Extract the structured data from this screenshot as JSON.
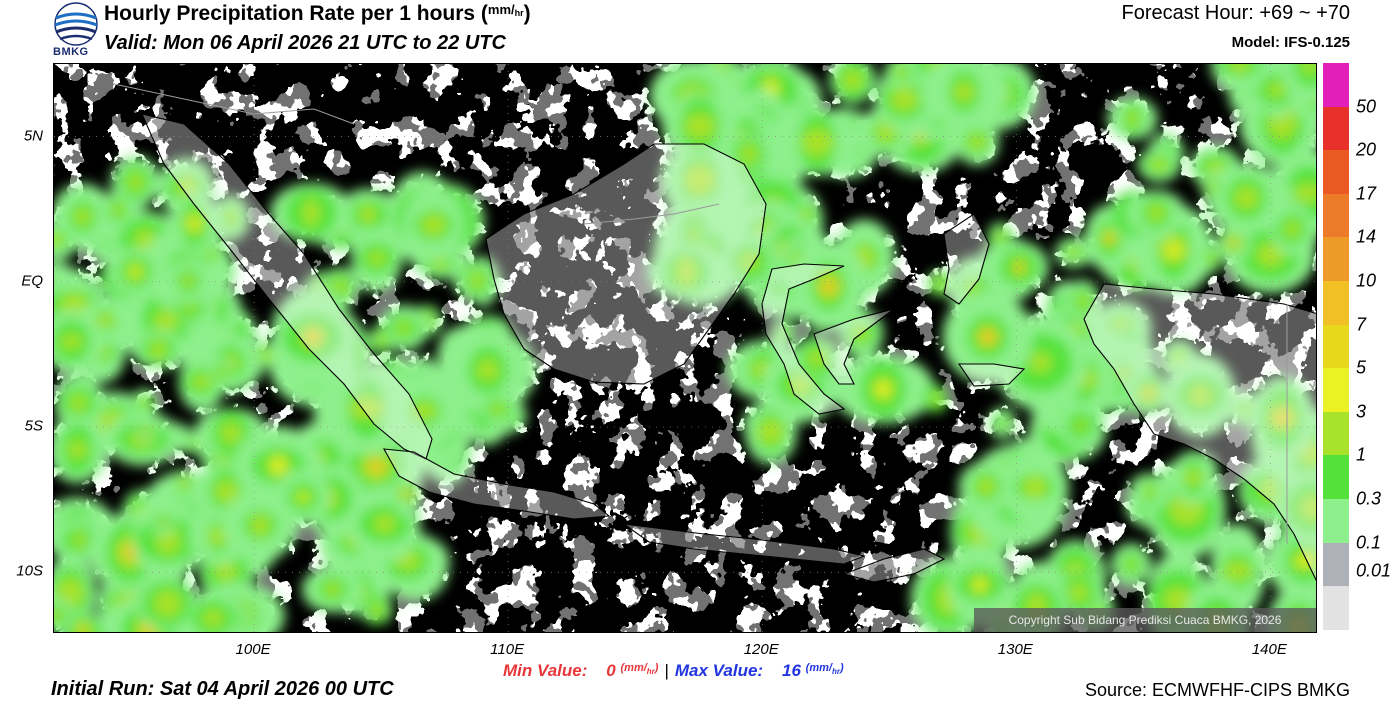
{
  "header": {
    "logo_text": "BMKG",
    "title": "Hourly Precipitation Rate per 1 hours (",
    "title_unit_top": "mm",
    "title_unit_bottom": "hr",
    "title_close": ")",
    "valid": "Valid: Mon 06 April 2026 21 UTC to 22 UTC",
    "forecast_hour": "Forecast Hour: +69 ~ +70",
    "model": "Model: IFS-0.125"
  },
  "map": {
    "lat_labels": [
      "5N",
      "EQ",
      "5S",
      "10S"
    ],
    "lon_labels": [
      "100E",
      "110E",
      "120E",
      "130E",
      "140E"
    ],
    "lat_range": [
      -12.125,
      7.5
    ],
    "lon_range": [
      92.125,
      141.875
    ],
    "copyright": "Copyright Sub Bidang Prediksi Cuaca BMKG, 2026"
  },
  "colorbar": {
    "labels": [
      "50",
      "20",
      "17",
      "14",
      "10",
      "7",
      "5",
      "3",
      "1",
      "0.3",
      "0.1",
      "0.01"
    ],
    "colors": [
      "#e21fb8",
      "#e8302a",
      "#ec5a24",
      "#ec7a28",
      "#ee9a28",
      "#f0c024",
      "#e8d81c",
      "#eaf224",
      "#a8e22a",
      "#54e23a",
      "#8ef08c",
      "#aeb1b8",
      "#e2e2e2"
    ]
  },
  "footer": {
    "min_label": "Min Value:",
    "min_value": "0",
    "max_label": "Max Value:",
    "max_value": "16",
    "unit_top": "mm",
    "unit_bottom": "hr",
    "initial_run": "Initial Run: Sat 04 April 2026 00 UTC",
    "source": "Source: ECMWFHF-CIPS BMKG"
  }
}
